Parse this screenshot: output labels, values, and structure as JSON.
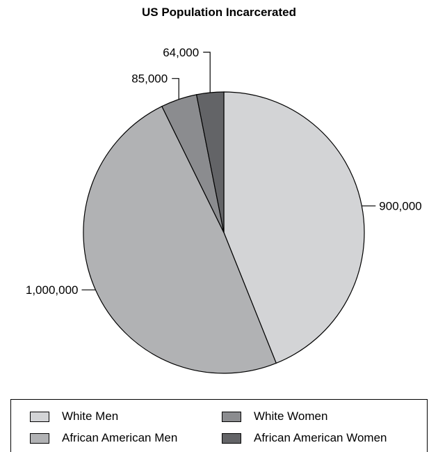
{
  "chart_data": {
    "type": "pie",
    "title": "US Population Incarcerated",
    "slices": [
      {
        "label": "White Men",
        "value": 900000,
        "value_label": "900,000",
        "color": "#d3d4d6"
      },
      {
        "label": "African American Men",
        "value": 1000000,
        "value_label": "1,000,000",
        "color": "#b1b2b4"
      },
      {
        "label": "White Women",
        "value": 85000,
        "value_label": "85,000",
        "color": "#8b8c8f"
      },
      {
        "label": "African American Women",
        "value": 64000,
        "value_label": "64,000",
        "color": "#636467"
      }
    ],
    "start_angle": "12 o'clock",
    "direction": "clockwise",
    "legend": {
      "placement": "bottom",
      "entries": [
        "White Men",
        "White Women",
        "African American Men",
        "African American Women"
      ]
    }
  }
}
